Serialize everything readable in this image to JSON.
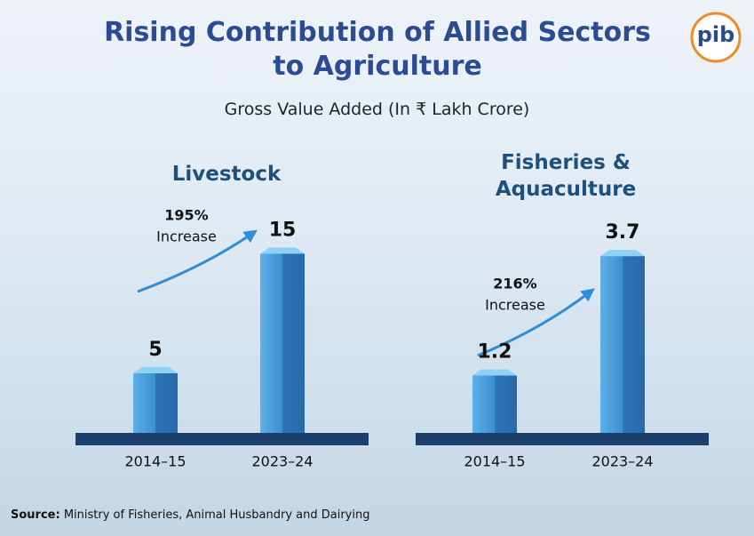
{
  "header": {
    "title": "Rising Contribution of Allied Sectors to Agriculture",
    "subtitle": "Gross Value Added (In ₹ Lakh Crore)",
    "logo": "pib"
  },
  "chart_data": [
    {
      "type": "bar",
      "title": "Livestock",
      "categories": [
        "2014–15",
        "2023–24"
      ],
      "values": [
        5,
        15
      ],
      "color": "#2f7fc4",
      "ylim": [
        0,
        16
      ],
      "annotation": [
        "195%",
        "Increase"
      ]
    },
    {
      "type": "bar",
      "title": "Fisheries & Aquaculture",
      "categories": [
        "2014–15",
        "2023–24"
      ],
      "values": [
        1.2,
        3.7
      ],
      "color": "#2f7fc4",
      "ylim": [
        0,
        4
      ],
      "annotation": [
        "216%",
        "Increase"
      ]
    }
  ],
  "footer": {
    "source_label": "Source:",
    "source": "Ministry of Fisheries, Animal Husbandry and Dairying"
  }
}
